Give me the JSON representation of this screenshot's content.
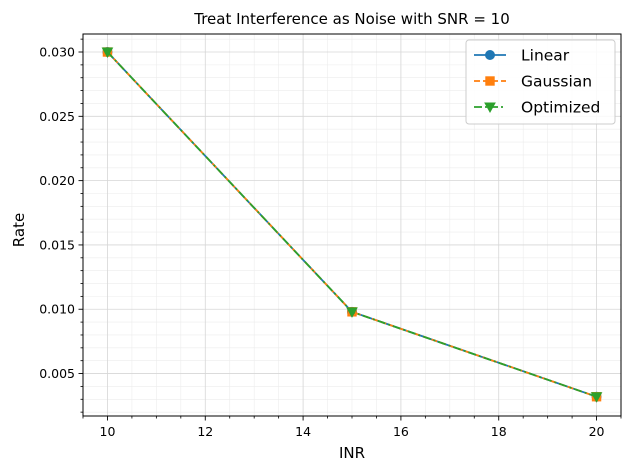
{
  "chart_data": {
    "type": "line",
    "title": "Treat Interference as Noise with SNR = 10",
    "xlabel": "INR",
    "ylabel": "Rate",
    "x": [
      10,
      15,
      20
    ],
    "xlim": [
      9.5,
      20.5
    ],
    "ylim": [
      0.0017,
      0.0314
    ],
    "xticks": [
      10,
      12,
      14,
      16,
      18,
      20
    ],
    "xtick_labels": [
      "10",
      "12",
      "14",
      "16",
      "18",
      "20"
    ],
    "yticks": [
      0.005,
      0.01,
      0.015,
      0.02,
      0.025,
      0.03
    ],
    "ytick_labels": [
      "0.005",
      "0.010",
      "0.015",
      "0.020",
      "0.025",
      "0.030"
    ],
    "grid": true,
    "minor_grid": true,
    "legend_position": "top-right",
    "series": [
      {
        "name": "Linear",
        "values": [
          0.03,
          0.0098,
          0.0032
        ],
        "color": "#1f77b4",
        "linestyle": "solid",
        "marker": "circle"
      },
      {
        "name": "Gaussian",
        "values": [
          0.03,
          0.0098,
          0.0032
        ],
        "color": "#ff7f0e",
        "linestyle": "dashed",
        "marker": "square"
      },
      {
        "name": "Optimized",
        "values": [
          0.03,
          0.0098,
          0.0032
        ],
        "color": "#2ca02c",
        "linestyle": "dashdot",
        "marker": "triangle-down"
      }
    ]
  }
}
